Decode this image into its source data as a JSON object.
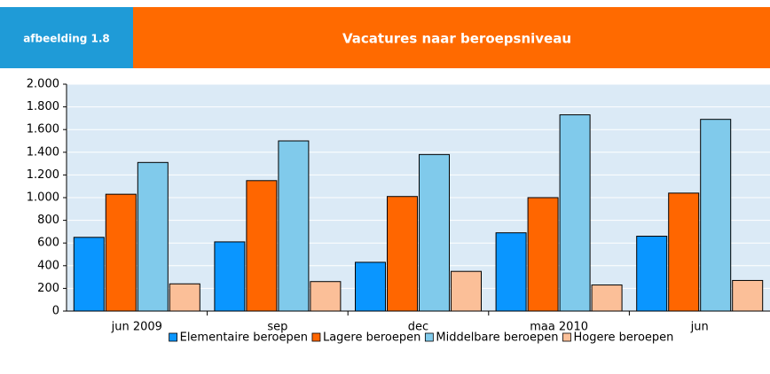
{
  "header": {
    "label": "afbeelding 1.8"
  },
  "chart_data": {
    "type": "bar",
    "title": "Vacatures naar beroepsniveau",
    "categories": [
      "jun 2009",
      "sep",
      "dec",
      "maa 2010",
      "jun"
    ],
    "series": [
      {
        "name": "Elementaire beroepen",
        "color": "#0a96ff",
        "values": [
          650,
          610,
          430,
          690,
          660
        ]
      },
      {
        "name": "Lagere beroepen",
        "color": "#ff6600",
        "values": [
          1030,
          1150,
          1010,
          1000,
          1040
        ]
      },
      {
        "name": "Middelbare beroepen",
        "color": "#80caeb",
        "values": [
          1310,
          1500,
          1380,
          1730,
          1690
        ]
      },
      {
        "name": "Hogere beroepen",
        "color": "#fbbf98",
        "values": [
          240,
          260,
          350,
          230,
          270
        ]
      }
    ],
    "ylim": [
      0,
      2000
    ],
    "yticks": [
      0,
      200,
      400,
      600,
      800,
      {
        "value": 1000,
        "label": "1.000"
      },
      {
        "value": 1200,
        "label": "1.200"
      },
      {
        "value": 1400,
        "label": "1.400"
      },
      {
        "value": 1600,
        "label": "1.600"
      },
      {
        "value": 1800,
        "label": "1.800"
      },
      {
        "value": 2000,
        "label": "2.000"
      }
    ],
    "grid": true,
    "legend": "bottom"
  }
}
